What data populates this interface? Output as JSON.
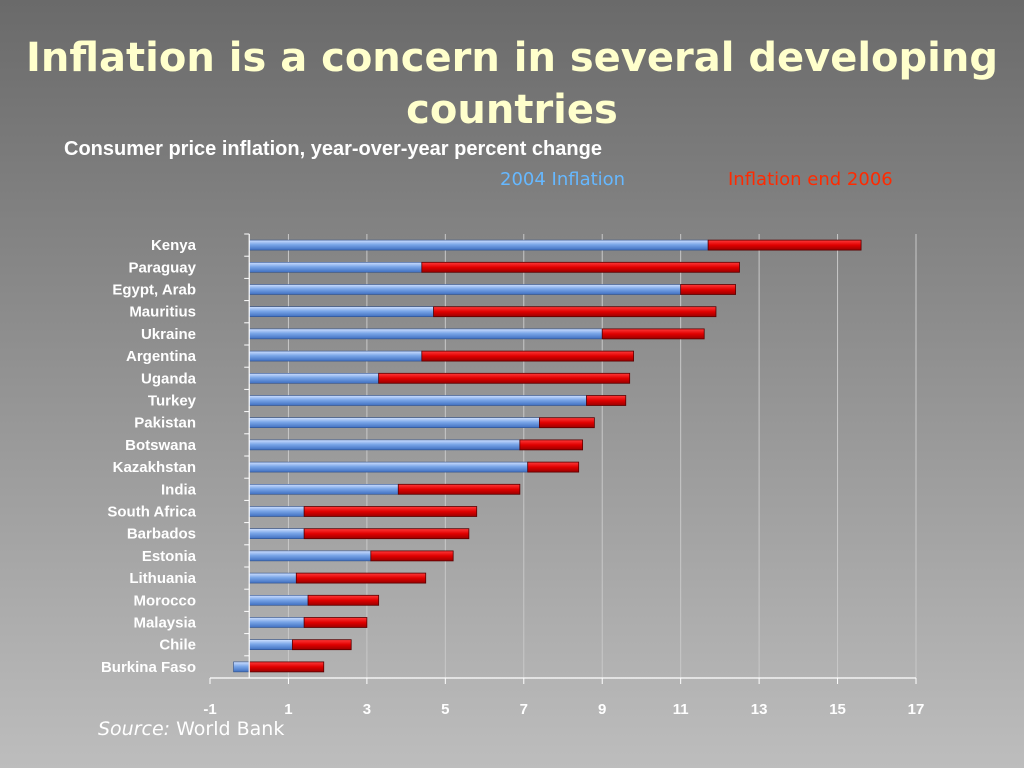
{
  "title": "Inflation is a concern in several developing countries",
  "subtitle": "Consumer price inflation, year-over-year percent change",
  "source": {
    "label": "Source:",
    "text": "World Bank"
  },
  "colors": {
    "series_2004": "#7aa6e8",
    "series_2006": "#e00000",
    "title": "#ffffcc",
    "legend_2004_text": "#66b8ff",
    "legend_2006_text": "#ff2a00"
  },
  "chart_data": {
    "type": "bar",
    "orientation": "horizontal",
    "title": "Consumer price inflation, year-over-year percent change",
    "xlabel": "",
    "ylabel": "",
    "xlim": [
      -1,
      17
    ],
    "xticks": [
      -1,
      1,
      3,
      5,
      7,
      9,
      11,
      13,
      15,
      17
    ],
    "grid": true,
    "legend_position": "top-right",
    "categories": [
      "Kenya",
      "Paraguay",
      "Egypt, Arab",
      "Mauritius",
      "Ukraine",
      "Argentina",
      "Uganda",
      "Turkey",
      "Pakistan",
      "Botswana",
      "Kazakhstan",
      "India",
      "South Africa",
      "Barbados",
      "Estonia",
      "Lithuania",
      "Morocco",
      "Malaysia",
      "Chile",
      "Burkina Faso"
    ],
    "series": [
      {
        "name": "2004 Inflation",
        "values": [
          11.7,
          4.4,
          11.0,
          4.7,
          9.0,
          4.4,
          3.3,
          8.6,
          7.4,
          6.9,
          7.1,
          3.8,
          1.4,
          1.4,
          3.1,
          1.2,
          1.5,
          1.4,
          1.1,
          -0.4
        ]
      },
      {
        "name": "Inflation end 2006",
        "values": [
          15.6,
          12.5,
          12.4,
          11.9,
          11.6,
          9.8,
          9.7,
          9.6,
          8.8,
          8.5,
          8.4,
          6.9,
          5.8,
          5.6,
          5.2,
          4.5,
          3.3,
          3.0,
          2.6,
          1.9
        ]
      }
    ]
  }
}
